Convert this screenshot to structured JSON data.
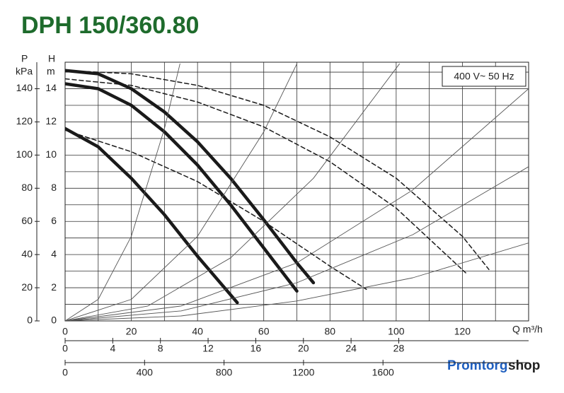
{
  "chart_data": {
    "type": "line",
    "title": "DPH 150/360.80",
    "note": "400 V~ 50 Hz",
    "y_label": [
      "H",
      "m"
    ],
    "y2_label": [
      "P",
      "kPa"
    ],
    "x_label": "Q m³/h",
    "xlim": [
      0,
      140
    ],
    "xticks": [
      0,
      20,
      40,
      60,
      80,
      100,
      120
    ],
    "xminor": [
      10,
      30,
      50,
      70,
      90,
      110,
      130
    ],
    "ylim": [
      0,
      15.6
    ],
    "yticks": [
      0,
      2,
      4,
      6,
      8,
      10,
      12,
      14
    ],
    "yminor": [
      1,
      3,
      5,
      7,
      9,
      11,
      13,
      15
    ],
    "y2lim": [
      0,
      156
    ],
    "y2ticks": [
      0,
      20,
      40,
      60,
      80,
      100,
      120,
      140
    ],
    "x2lim": [
      0,
      38.9
    ],
    "x2ticks": [
      0,
      4,
      8,
      12,
      16,
      20,
      24,
      28
    ],
    "x3lim": [
      0,
      2333
    ],
    "x3ticks": [
      0,
      400,
      800,
      1200,
      1600
    ],
    "grid": true,
    "series": [
      {
        "style": "solid",
        "color": "#1a1a1a",
        "x": [
          0,
          10,
          20,
          30,
          40,
          52
        ],
        "values": [
          11.6,
          10.5,
          8.6,
          6.4,
          3.9,
          1.1
        ]
      },
      {
        "style": "solid",
        "color": "#1a1a1a",
        "x": [
          0,
          10,
          20,
          30,
          40,
          50,
          60,
          70
        ],
        "values": [
          14.3,
          14.0,
          13.0,
          11.4,
          9.4,
          7.0,
          4.4,
          1.8
        ]
      },
      {
        "style": "solid",
        "color": "#1a1a1a",
        "x": [
          0,
          10,
          20,
          30,
          40,
          50,
          60,
          70,
          75
        ],
        "values": [
          15.1,
          14.9,
          14.0,
          12.6,
          10.8,
          8.6,
          6.1,
          3.5,
          2.3
        ]
      },
      {
        "style": "dashed",
        "color": "#1a1a1a",
        "x": [
          0,
          20,
          40,
          60,
          80,
          91
        ],
        "values": [
          11.5,
          10.2,
          8.4,
          6.0,
          3.3,
          1.9
        ]
      },
      {
        "style": "dashed",
        "color": "#1a1a1a",
        "x": [
          0,
          20,
          40,
          60,
          80,
          100,
          121
        ],
        "values": [
          14.6,
          14.2,
          13.2,
          11.7,
          9.6,
          6.8,
          2.9
        ]
      },
      {
        "style": "dashed",
        "color": "#1a1a1a",
        "x": [
          0,
          20,
          40,
          60,
          80,
          100,
          120,
          128
        ],
        "values": [
          15.1,
          14.9,
          14.2,
          13.0,
          11.1,
          8.6,
          5.1,
          3.1
        ]
      },
      {
        "style": "thin",
        "color": "#555555",
        "x": [
          0,
          10,
          20,
          30,
          34.7
        ],
        "values": [
          0,
          1.3,
          5.1,
          11.6,
          15.5
        ]
      },
      {
        "style": "thin",
        "color": "#555555",
        "x": [
          0,
          20,
          40,
          60,
          70
        ],
        "values": [
          0,
          1.3,
          5.1,
          11.4,
          15.5
        ]
      },
      {
        "style": "thin",
        "color": "#555555",
        "x": [
          0,
          25,
          50,
          75,
          101
        ],
        "values": [
          0,
          0.9,
          3.8,
          8.6,
          15.5
        ]
      },
      {
        "style": "thin",
        "color": "#555555",
        "x": [
          0,
          35,
          70,
          105,
          140
        ],
        "values": [
          0,
          0.9,
          3.5,
          7.9,
          14.0
        ]
      },
      {
        "style": "thin",
        "color": "#555555",
        "x": [
          0,
          35,
          70,
          105,
          140
        ],
        "values": [
          0,
          0.6,
          2.3,
          5.2,
          9.3
        ]
      },
      {
        "style": "thin",
        "color": "#555555",
        "x": [
          0,
          35,
          70,
          105,
          140
        ],
        "values": [
          0,
          0.3,
          1.2,
          2.6,
          4.7
        ]
      }
    ]
  },
  "logo": [
    "Promtorg",
    "shop"
  ]
}
